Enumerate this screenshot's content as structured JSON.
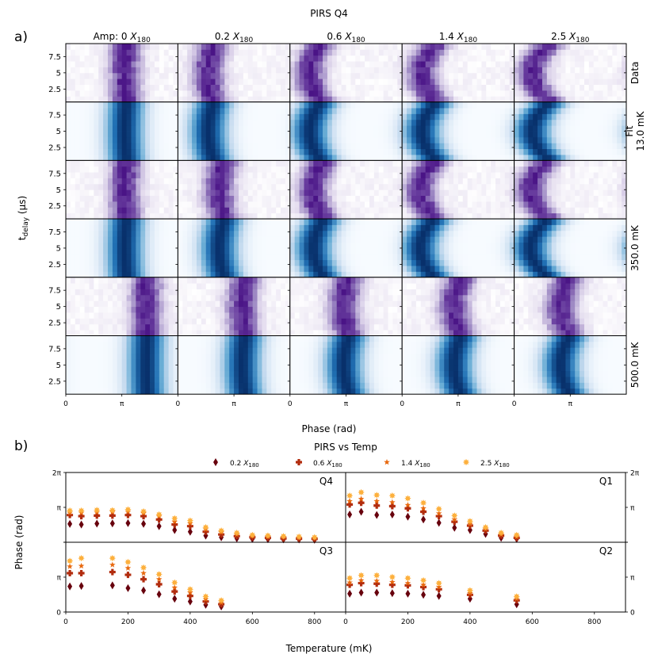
{
  "figure": {
    "panel_a_letter": "a)",
    "panel_b_letter": "b)",
    "title_a": "PIRS Q4",
    "title_b": "PIRS vs Temp",
    "xlabel_a": "Phase (rad)",
    "ylabel_a_main": "t",
    "ylabel_a_sub": "delay",
    "ylabel_a_unit": " (μs)",
    "xlabel_b": "Temperature (mK)",
    "ylabel_b": "Phase (rad)"
  },
  "colors": {
    "data_cmap": [
      "#ffffff",
      "#d9cfe8",
      "#9e8ac4",
      "#6a3fa0",
      "#4a1486"
    ],
    "fit_cmap": [
      "#f7fbff",
      "#c6dbef",
      "#6baed6",
      "#2171b5",
      "#08306b"
    ],
    "series": [
      "#67000d",
      "#b22d0f",
      "#e8690f",
      "#fdb03d"
    ]
  },
  "chart_data": [
    {
      "type": "heatmap",
      "title": "PIRS Q4",
      "xlabel": "Phase (rad)",
      "ylabel": "t_delay (μs)",
      "column_titles": [
        {
          "prefix": "Amp: ",
          "value": "0"
        },
        {
          "prefix": "",
          "value": "0.2"
        },
        {
          "prefix": "",
          "value": "0.6"
        },
        {
          "prefix": "",
          "value": "1.4"
        },
        {
          "prefix": "",
          "value": "2.5"
        }
      ],
      "column_title_unit": "X",
      "column_title_unit_sub": "180",
      "amplitudes": [
        0,
        0.2,
        0.6,
        1.4,
        2.5
      ],
      "row_labels": [
        {
          "lines": [
            "Data"
          ],
          "kind": "data"
        },
        {
          "lines": [
            "Fit",
            "13.0 mK"
          ],
          "kind": "fit"
        },
        {
          "lines": [],
          "kind": "data"
        },
        {
          "lines": [
            "350.0 mK"
          ],
          "kind": "fit"
        },
        {
          "lines": [],
          "kind": "data"
        },
        {
          "lines": [
            "500.0 mK"
          ],
          "kind": "fit"
        }
      ],
      "temperatures_mK": [
        13.0,
        350.0,
        500.0
      ],
      "xlim": [
        0,
        6.283
      ],
      "xticks": [
        {
          "value": 0,
          "label": "0"
        },
        {
          "value": 3.1416,
          "label": "π"
        }
      ],
      "ylim": [
        0.5,
        9.5
      ],
      "yticks": [
        {
          "value": 2.5,
          "label": "2.5"
        },
        {
          "value": 5,
          "label": "5"
        },
        {
          "value": 7.5,
          "label": "7.5"
        }
      ],
      "peak_phase_rad": [
        [
          3.3,
          1.7,
          1.1,
          1.1,
          1.0
        ],
        [
          3.3,
          2.3,
          1.3,
          1.0,
          0.9
        ],
        [
          4.5,
          3.6,
          3.0,
          2.9,
          2.6
        ]
      ],
      "peak_swing_rad": [
        0.1,
        0.3,
        0.6,
        0.8,
        1.0
      ]
    },
    {
      "type": "scatter",
      "title": "PIRS vs Temp",
      "xlabel": "Temperature (mK)",
      "ylabel": "Phase (rad)",
      "xlim": [
        0,
        900
      ],
      "xticks": [
        0,
        200,
        400,
        600,
        800
      ],
      "ylim": [
        0,
        6.283
      ],
      "yticks": [
        {
          "value": 0,
          "label": "0"
        },
        {
          "value": 3.1416,
          "label": "π"
        },
        {
          "value": 6.283,
          "label": "2π"
        }
      ],
      "legend_position": "top",
      "legend": [
        {
          "value": "0.2",
          "unit": "X",
          "unit_sub": "180",
          "marker": "diamond"
        },
        {
          "value": "0.6",
          "unit": "X",
          "unit_sub": "180",
          "marker": "plus"
        },
        {
          "value": "1.4",
          "unit": "X",
          "unit_sub": "180",
          "marker": "star"
        },
        {
          "value": "2.5",
          "unit": "X",
          "unit_sub": "180",
          "marker": "burst"
        }
      ],
      "subplots": [
        {
          "label": "Q4",
          "position": "top-left",
          "x": [
            13,
            50,
            100,
            150,
            200,
            250,
            300,
            350,
            400,
            450,
            500,
            550,
            600,
            650,
            700,
            750,
            800
          ],
          "series": [
            [
              1.65,
              1.6,
              1.68,
              1.7,
              1.72,
              1.66,
              1.45,
              1.1,
              0.95,
              0.6,
              0.45,
              0.35,
              0.3,
              0.28,
              0.26,
              0.25,
              0.22
            ],
            [
              2.45,
              2.35,
              2.4,
              2.4,
              2.45,
              2.35,
              2.05,
              1.6,
              1.45,
              0.95,
              0.7,
              0.55,
              0.45,
              0.4,
              0.35,
              0.32,
              0.3
            ],
            [
              2.65,
              2.65,
              2.7,
              2.72,
              2.75,
              2.62,
              2.35,
              1.85,
              1.7,
              1.15,
              0.9,
              0.7,
              0.55,
              0.5,
              0.45,
              0.4,
              0.38
            ],
            [
              2.85,
              2.85,
              2.9,
              2.88,
              2.95,
              2.78,
              2.5,
              2.15,
              1.95,
              1.35,
              1.05,
              0.85,
              0.65,
              0.6,
              0.55,
              0.5,
              0.45
            ]
          ]
        },
        {
          "label": "Q1",
          "position": "top-right",
          "x": [
            13,
            50,
            100,
            150,
            200,
            250,
            300,
            350,
            400,
            450,
            500,
            550
          ],
          "series": [
            [
              2.5,
              2.75,
              2.45,
              2.5,
              2.3,
              2.05,
              1.75,
              1.3,
              1.1,
              0.75,
              0.4,
              0.3
            ],
            [
              3.4,
              3.55,
              3.3,
              3.25,
              3.05,
              2.75,
              2.35,
              1.85,
              1.5,
              1.05,
              0.6,
              0.4
            ],
            [
              3.7,
              3.9,
              3.7,
              3.6,
              3.35,
              3.05,
              2.6,
              2.05,
              1.65,
              1.2,
              0.7,
              0.5
            ],
            [
              4.2,
              4.5,
              4.25,
              4.2,
              3.95,
              3.55,
              3.0,
              2.4,
              1.9,
              1.35,
              0.85,
              0.65
            ]
          ]
        },
        {
          "label": "Q3",
          "position": "bottom-left",
          "x": [
            13,
            50,
            150,
            200,
            250,
            300,
            350,
            400,
            450,
            500
          ],
          "series": [
            [
              2.3,
              2.35,
              2.4,
              2.15,
              1.95,
              1.6,
              1.2,
              0.95,
              0.65,
              0.5
            ],
            [
              3.5,
              3.5,
              3.6,
              3.35,
              2.95,
              2.5,
              1.85,
              1.45,
              0.95,
              0.7
            ],
            [
              4.1,
              4.15,
              4.25,
              3.95,
              3.5,
              2.95,
              2.2,
              1.75,
              1.15,
              0.85
            ],
            [
              4.6,
              4.85,
              4.85,
              4.5,
              4.0,
              3.4,
              2.65,
              2.05,
              1.4,
              1.05
            ]
          ]
        },
        {
          "label": "Q2",
          "position": "bottom-right",
          "x": [
            13,
            50,
            100,
            150,
            200,
            250,
            300,
            400,
            550
          ],
          "series": [
            [
              1.65,
              1.75,
              1.75,
              1.7,
              1.65,
              1.55,
              1.45,
              1.2,
              0.7
            ],
            [
              2.45,
              2.6,
              2.55,
              2.45,
              2.4,
              2.25,
              2.05,
              1.55,
              1.05
            ],
            [
              2.65,
              2.85,
              2.8,
              2.7,
              2.6,
              2.45,
              2.25,
              1.7,
              1.2
            ],
            [
              3.05,
              3.3,
              3.3,
              3.15,
              3.05,
              2.85,
              2.6,
              1.95,
              1.4
            ]
          ]
        }
      ]
    }
  ]
}
